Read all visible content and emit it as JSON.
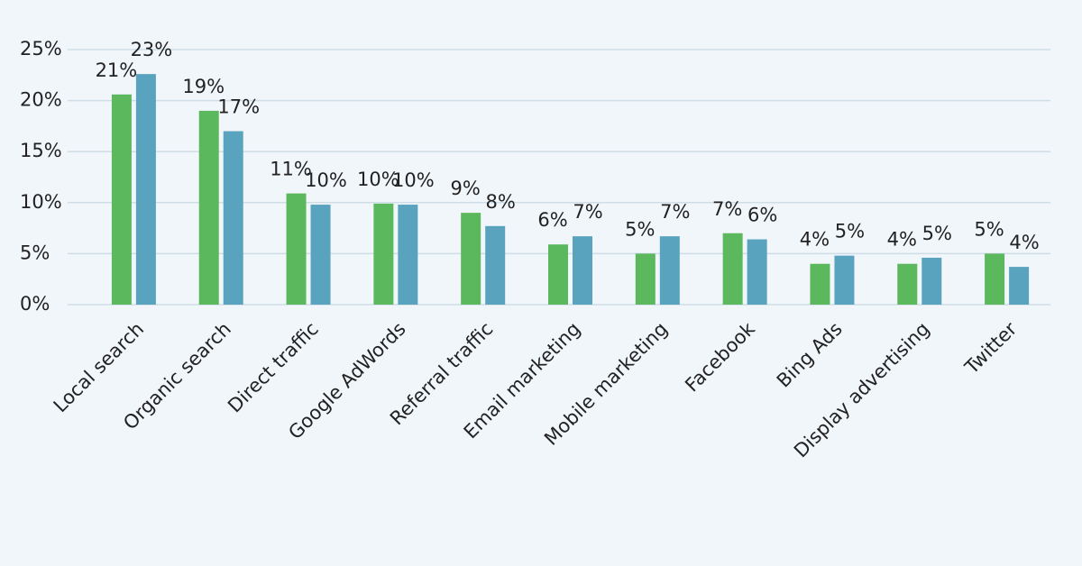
{
  "chart_data": {
    "type": "bar",
    "categories": [
      "Local search",
      "Organic search",
      "Direct traffic",
      "Google AdWords",
      "Referral traffic",
      "Email marketing",
      "Mobile marketing",
      "Facebook",
      "Bing Ads",
      "Display advertising",
      "Twitter"
    ],
    "series": [
      {
        "color": "#5cb85c",
        "values": [
          20.6,
          19,
          10.9,
          9.9,
          9,
          5.9,
          5,
          7,
          4,
          4,
          5
        ],
        "value_labels": [
          "21%",
          "19%",
          "11%",
          "10%",
          "9%",
          "6%",
          "5%",
          "7%",
          "4%",
          "4%",
          "5%"
        ]
      },
      {
        "color": "#5aa3be",
        "values": [
          22.6,
          17,
          9.8,
          9.8,
          7.7,
          6.7,
          6.7,
          6.4,
          4.8,
          4.6,
          3.7
        ],
        "value_labels": [
          "23%",
          "17%",
          "10%",
          "10%",
          "8%",
          "7%",
          "7%",
          "6%",
          "5%",
          "5%",
          "4%"
        ]
      }
    ],
    "ylim": [
      0,
      25
    ],
    "yticks": [
      {
        "value": 0,
        "label": "0%"
      },
      {
        "value": 5,
        "label": "5%"
      },
      {
        "value": 10,
        "label": "10%"
      },
      {
        "value": 15,
        "label": "15%"
      },
      {
        "value": 20,
        "label": "20%"
      },
      {
        "value": 25,
        "label": "25%"
      }
    ],
    "grid": true
  }
}
